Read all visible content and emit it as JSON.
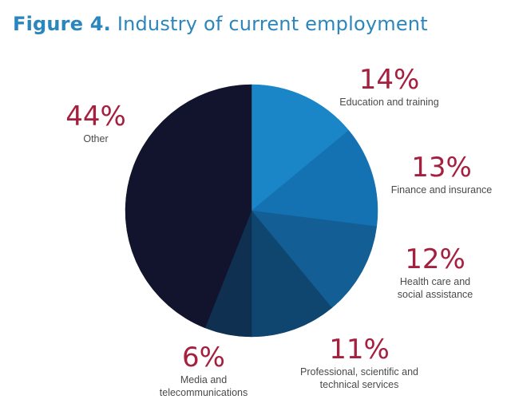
{
  "title": {
    "number": "Figure 4.",
    "text": " Industry of current employment"
  },
  "colors": {
    "title": "#2b86bd",
    "percent_text": "#a5203e",
    "category_text": "#4a4a4a"
  },
  "chart_data": {
    "type": "pie",
    "title": "Figure 4. Industry of current employment",
    "start_angle_deg": 0,
    "direction": "clockwise",
    "slices": [
      {
        "label": "Education and training",
        "lines": [
          "Education and training"
        ],
        "value": 14,
        "display": "14%",
        "color": "#1a86c7"
      },
      {
        "label": "Finance and insurance",
        "lines": [
          "Finance and insurance"
        ],
        "value": 13,
        "display": "13%",
        "color": "#1472b3"
      },
      {
        "label": "Health care and social assistance",
        "lines": [
          "Health care and",
          "social assistance"
        ],
        "value": 12,
        "display": "12%",
        "color": "#135e94"
      },
      {
        "label": "Professional, scientific and technical services",
        "lines": [
          "Professional, scientific and",
          "technical services"
        ],
        "value": 11,
        "display": "11%",
        "color": "#0f466f"
      },
      {
        "label": "Media and telecommunications",
        "lines": [
          "Media and",
          "telecommunications"
        ],
        "value": 6,
        "display": "6%",
        "color": "#0f3050"
      },
      {
        "label": "Other",
        "lines": [
          "Other"
        ],
        "value": 44,
        "display": "44%",
        "color": "#11142c"
      }
    ]
  }
}
